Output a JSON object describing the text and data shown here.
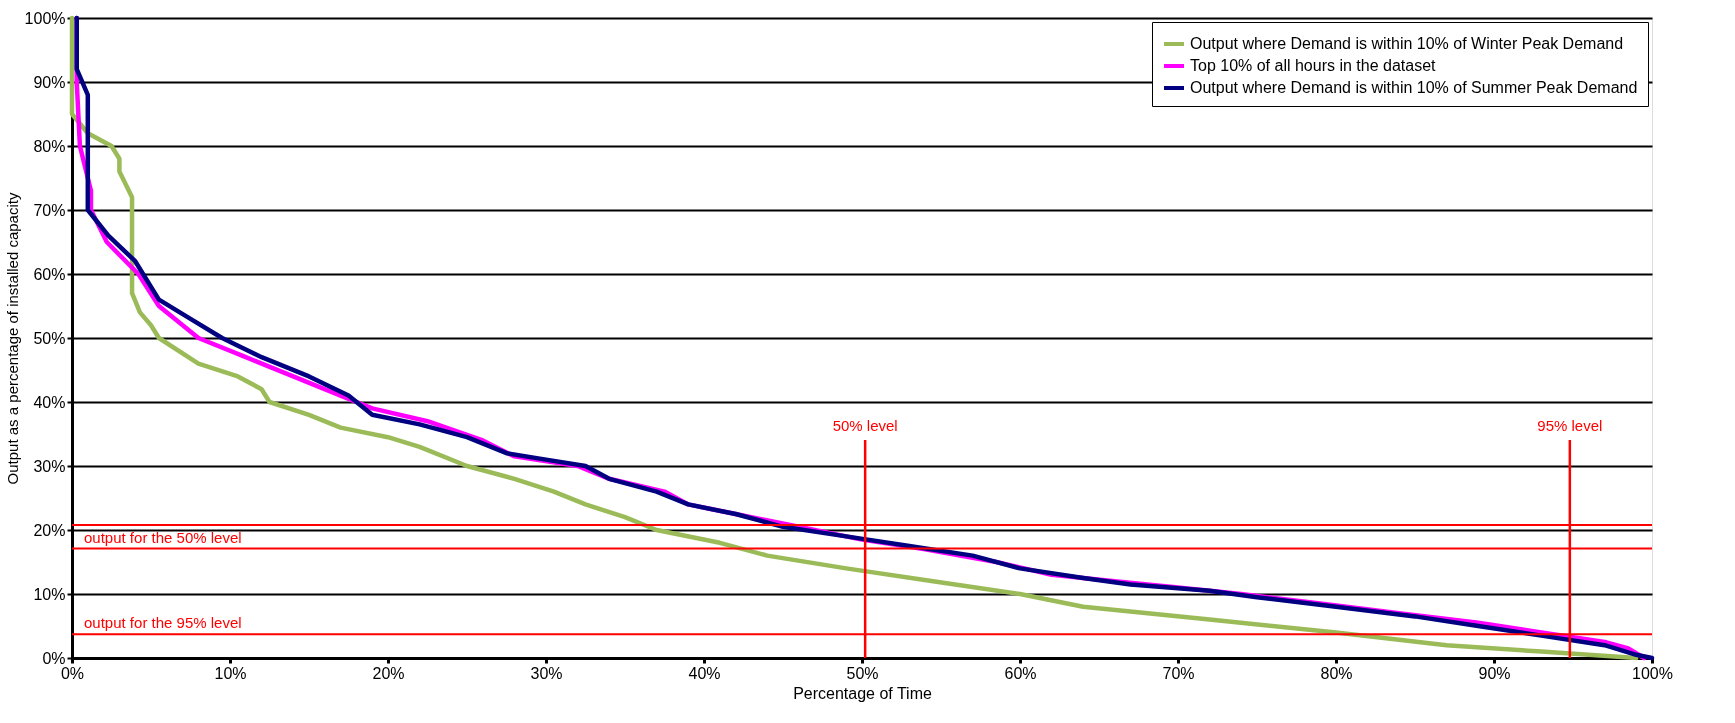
{
  "chart_data": {
    "type": "line",
    "xlabel": "Percentage of Time",
    "ylabel": "Output as a percentage of installed capacity",
    "xlim": [
      0,
      100
    ],
    "ylim": [
      0,
      100
    ],
    "xticks": [
      {
        "value": 0,
        "label": "0%"
      },
      {
        "value": 10,
        "label": "10%"
      },
      {
        "value": 20,
        "label": "20%"
      },
      {
        "value": 30,
        "label": "30%"
      },
      {
        "value": 40,
        "label": "40%"
      },
      {
        "value": 50,
        "label": "50%"
      },
      {
        "value": 60,
        "label": "60%"
      },
      {
        "value": 70,
        "label": "70%"
      },
      {
        "value": 80,
        "label": "80%"
      },
      {
        "value": 90,
        "label": "90%"
      },
      {
        "value": 100,
        "label": "100%"
      }
    ],
    "yticks": [
      {
        "value": 0,
        "label": "0%"
      },
      {
        "value": 10,
        "label": "10%"
      },
      {
        "value": 20,
        "label": "20%"
      },
      {
        "value": 30,
        "label": "30%"
      },
      {
        "value": 40,
        "label": "40%"
      },
      {
        "value": 50,
        "label": "50%"
      },
      {
        "value": 60,
        "label": "60%"
      },
      {
        "value": 70,
        "label": "70%"
      },
      {
        "value": 80,
        "label": "80%"
      },
      {
        "value": 90,
        "label": "90%"
      },
      {
        "value": 100,
        "label": "100%"
      }
    ],
    "grid": "y",
    "legend": "top right",
    "line_style": "solid",
    "marker": "none",
    "series": [
      {
        "name": "Output where Demand is within 10% of Winter Peak Demand",
        "color": "#9bbb59",
        "x": [
          0,
          0,
          1,
          2.5,
          3,
          3,
          3.8,
          3.8,
          4.3,
          5,
          5.5,
          8,
          10.5,
          12,
          12.5,
          15,
          17,
          20,
          22,
          25,
          28,
          30.5,
          32.5,
          35,
          37,
          41,
          44,
          49,
          54.5,
          60,
          64,
          72,
          80,
          87,
          93,
          96,
          99
        ],
        "values": [
          100,
          85,
          82,
          80,
          78,
          76,
          72,
          57,
          54,
          52,
          50,
          46,
          44,
          42,
          40,
          38,
          36,
          34.5,
          33,
          30,
          28,
          26,
          24,
          22,
          20,
          18,
          16,
          14,
          12,
          10,
          8,
          6,
          4,
          2,
          1,
          0.5,
          0
        ]
      },
      {
        "name": "Top 10% of all hours in the dataset",
        "color": "#ff00ff",
        "x": [
          0.3,
          0.3,
          0.5,
          1.2,
          1.2,
          2.2,
          4.2,
          5.5,
          8,
          11,
          14,
          17,
          19,
          22.5,
          26,
          28,
          32,
          34,
          37.5,
          39,
          42,
          46,
          50,
          54,
          58.5,
          62,
          66,
          70,
          74,
          79,
          84,
          89,
          93,
          97,
          98.5,
          99.5
        ],
        "values": [
          100,
          90,
          80,
          73,
          70,
          65,
          60,
          55,
          50,
          47,
          44,
          41,
          39,
          37,
          34,
          31.5,
          30,
          28,
          26,
          24,
          22.5,
          20.5,
          18.5,
          17,
          15,
          13,
          12,
          11,
          10,
          8.5,
          7,
          5.5,
          4,
          2.5,
          1.5,
          0
        ]
      },
      {
        "name": "Output where Demand is within 10% of Summer Peak Demand",
        "color": "#000080",
        "x": [
          0.3,
          0.3,
          1,
          1,
          1,
          2.3,
          4,
          5.5,
          7.5,
          9.5,
          12,
          15,
          17.5,
          19,
          22,
          25,
          27.5,
          30,
          32.5,
          34,
          37,
          39,
          42,
          45,
          49,
          53,
          57,
          60,
          64,
          67,
          72,
          75,
          80,
          85,
          89,
          93,
          97,
          99,
          100
        ],
        "values": [
          100,
          92,
          88,
          82,
          70,
          66,
          62,
          56,
          53,
          50,
          47,
          44,
          41,
          38,
          36.5,
          34.5,
          32,
          31,
          30,
          28,
          26,
          24,
          22.5,
          20.5,
          19,
          17.5,
          16,
          14,
          12.5,
          11.5,
          10.5,
          9.5,
          8,
          6.5,
          5,
          3.5,
          2,
          0.5,
          0
        ]
      }
    ],
    "ref_lines": [
      {
        "axis": "x",
        "value": 50.2,
        "label": "50% level",
        "color": "#ff0000"
      },
      {
        "axis": "x",
        "value": 94.8,
        "label": "95% level",
        "color": "#ff0000"
      },
      {
        "axis": "y",
        "value": 20.8,
        "label": null,
        "color": "#ff0000"
      },
      {
        "axis": "y",
        "value": 17.1,
        "label": "output for the 50% level",
        "color": "#ff0000"
      },
      {
        "axis": "y",
        "value": 3.7,
        "label": "output for the 95% level",
        "color": "#ff0000"
      }
    ]
  }
}
